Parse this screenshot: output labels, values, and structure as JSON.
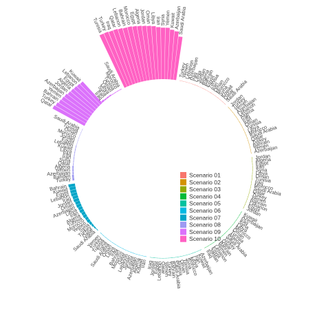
{
  "chart_data": {
    "type": "bar",
    "layout": "circular",
    "legend_position": "center",
    "grid": false,
    "series": [
      {
        "name": "Scenario 01",
        "color": "#F8766D",
        "categories": [
          "Turkey",
          "Yemen",
          "Lebanon",
          "Azerbaijan",
          "Iraq",
          "Libya",
          "Jordan",
          "Algeria",
          "Bahrain",
          "Egypt",
          "Tunisia",
          "Iran",
          "Oman",
          "Morocco",
          "Syria",
          "Kuwait",
          "Qatar",
          "Saudi Arabia"
        ],
        "values": [
          0,
          0,
          0,
          0,
          0,
          0,
          0,
          0,
          0,
          0,
          0,
          0,
          0,
          0,
          0,
          0,
          0,
          0
        ]
      },
      {
        "name": "Scenario 02",
        "color": "#D39200",
        "categories": [
          "Jordan",
          "Turkey",
          "Yemen",
          "Azerbaijan",
          "Lebanon",
          "Algeria",
          "Iraq",
          "Iran",
          "Oman",
          "Tunisia",
          "Libya",
          "Morocco",
          "Saudi Arabia",
          "Qatar",
          "Turkey",
          "Bahrain",
          "Yemen",
          "Azerbaijan"
        ],
        "values": [
          0.5,
          0.5,
          0.5,
          0.5,
          0.5,
          0.5,
          0.5,
          0.5,
          0.5,
          0.5,
          0.5,
          0.5,
          0.5,
          0.5,
          0.5,
          0.5,
          0.5,
          0.5
        ]
      },
      {
        "name": "Scenario 03",
        "color": "#93AA00",
        "categories": [
          "Jordan",
          "Algeria",
          "Egypt",
          "Iran",
          "Syria",
          "Libya",
          "Oman",
          "Tunisia",
          "Iraq",
          "Morocco",
          "Saudi Arabia",
          "Qatar",
          "Turkey",
          "Yemen",
          "Bahrain",
          "Lebanon",
          "Egypt",
          "Jordan"
        ],
        "values": [
          0.5,
          0.5,
          0.5,
          0.5,
          0.5,
          0.5,
          0.5,
          0.5,
          0.5,
          0.5,
          0.5,
          0.5,
          0.5,
          0.5,
          0.5,
          0.5,
          0.5,
          0.5
        ]
      },
      {
        "name": "Scenario 04",
        "color": "#00BA38",
        "categories": [
          "Kuwait",
          "Azerbaijan",
          "Iraq",
          "Syria",
          "Libya",
          "Morocco",
          "Oman",
          "Tunisia",
          "Algeria",
          "Saudi Arabia",
          "Turkey",
          "Qatar",
          "Bahrain",
          "Yemen",
          "Lebanon",
          "Egypt",
          "Jordan",
          "Iraq"
        ],
        "values": [
          0.5,
          0.5,
          0.5,
          0.5,
          0.5,
          0.5,
          0.5,
          0.5,
          0.5,
          0.5,
          0.5,
          0.5,
          0.5,
          0.5,
          0.5,
          0.5,
          0.5,
          0.5
        ]
      },
      {
        "name": "Scenario 05",
        "color": "#00C19F",
        "categories": [
          "Azerbaijan",
          "Kuwait",
          "Iran",
          "Libya",
          "Morocco",
          "Syria",
          "Tunisia",
          "Oman",
          "Algeria",
          "Saudi Arabia",
          "Bahrain",
          "Turkey",
          "Yemen",
          "Qatar",
          "Lebanon",
          "Egypt",
          "Jordan",
          "Iraq"
        ],
        "values": [
          0.5,
          0.5,
          0.5,
          0.5,
          0.5,
          0.5,
          0.5,
          0.5,
          0.5,
          0.5,
          0.5,
          0.5,
          0.5,
          0.5,
          0.5,
          0.5,
          0.5,
          0.5
        ]
      },
      {
        "name": "Scenario 06",
        "color": "#00B9E3",
        "categories": [
          "Iran",
          "Kuwait",
          "Algeria",
          "Azerbaijan",
          "Egypt",
          "Jordan",
          "Lebanon",
          "Qatar",
          "Morocco",
          "Bahrain",
          "Iraq",
          "Libya",
          "Oman",
          "Saudi Arabia",
          "Syria",
          "Tunisia",
          "Turkey",
          "Yemen"
        ],
        "values": [
          0.5,
          0.5,
          0.5,
          0.5,
          0.5,
          0.5,
          0.5,
          0.5,
          0.5,
          0.5,
          0.5,
          0.5,
          0.5,
          0.5,
          0.5,
          0.5,
          0.5,
          0.5
        ]
      },
      {
        "name": "Scenario 07",
        "color": "#00A5C8",
        "categories": [
          "Saudi Arabia",
          "Qatar",
          "Turkey",
          "Syria",
          "Yemen",
          "Morocco",
          "Tunisia",
          "Algeria",
          "Iran",
          "Libya",
          "Azerbaijan",
          "Oman",
          "Jordan",
          "Iraq",
          "Lebanon",
          "Egypt",
          "Kuwait",
          "Bahrain"
        ],
        "values": [
          1,
          2,
          3,
          4,
          5,
          5,
          6,
          6,
          7,
          7,
          8,
          8,
          9,
          9,
          10,
          10,
          10,
          11
        ]
      },
      {
        "name": "Scenario 08",
        "color": "#9E9AF2",
        "categories": [
          "Turkey",
          "Bahrain",
          "Azerbaijan",
          "Yemen",
          "Algeria",
          "Qatar",
          "Syria",
          "Iran",
          "Iraq",
          "Libya",
          "Kuwait",
          "Lebanon",
          "Egypt",
          "Jordan",
          "Morocco",
          "Oman",
          "Tunisia",
          "Saudi Arabia"
        ],
        "values": [
          3,
          3,
          2,
          2,
          2,
          1,
          1,
          1,
          1,
          1,
          1,
          1,
          0.5,
          0.5,
          0.5,
          0.5,
          0.5,
          0.5
        ]
      },
      {
        "name": "Scenario 09",
        "color": "#DB72FB",
        "categories": [
          "Qatar",
          "Turkey",
          "Bahrain",
          "Yemen",
          "Azerbaijan",
          "Jordan",
          "Algeria",
          "Egypt",
          "Lebanon",
          "Kuwait",
          "Iraq",
          "Iran",
          "Syria",
          "Libya",
          "Oman",
          "Tunisia",
          "Morocco",
          "Saudi Arabia"
        ],
        "values": [
          60,
          58,
          56,
          55,
          54,
          52,
          51,
          50,
          49,
          48,
          3,
          2,
          2,
          2,
          1,
          1,
          1,
          1
        ]
      },
      {
        "name": "Scenario 10",
        "color": "#FF61C3",
        "categories": [
          "Tunisia",
          "Turkey",
          "Iraq",
          "Qatar",
          "Lebanon",
          "Bahrain",
          "Morocco",
          "Egypt",
          "Algeria",
          "Jordan",
          "Oman",
          "Libya",
          "Iran",
          "Syria",
          "Yemen",
          "Kuwait",
          "Azerbaijan",
          "Saudi Arabia"
        ],
        "values": [
          96,
          96,
          95,
          95,
          94,
          93,
          93,
          92,
          91,
          90,
          89,
          88,
          86,
          85,
          85,
          82,
          80,
          72
        ]
      }
    ]
  }
}
